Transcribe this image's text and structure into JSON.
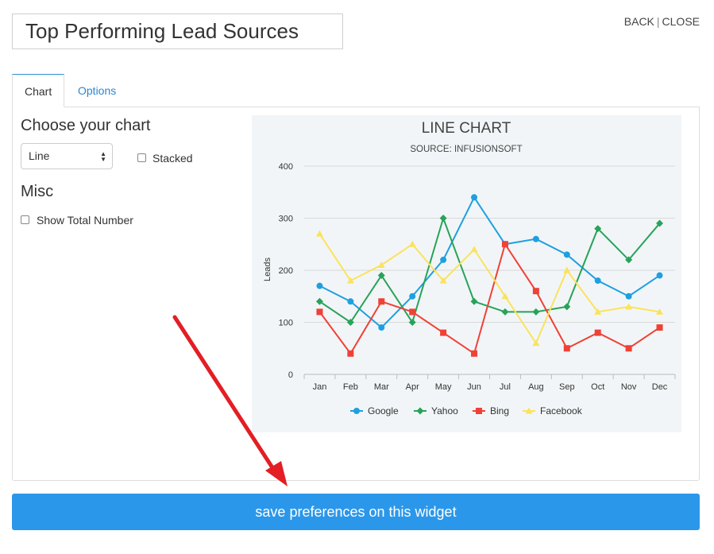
{
  "widget": {
    "title": "Top Performing Lead Sources"
  },
  "top_links": {
    "back": "BACK",
    "separator": "|",
    "close": "CLOSE"
  },
  "tabs": [
    {
      "label": "Chart",
      "active": true
    },
    {
      "label": "Options",
      "active": false
    }
  ],
  "chart_settings": {
    "heading": "Choose your chart",
    "chart_type": "Line",
    "stacked_label": "Stacked",
    "stacked_checked": false
  },
  "misc": {
    "heading": "Misc",
    "show_total_label": "Show Total Number",
    "show_total_checked": false
  },
  "save_button": {
    "label": "save preferences on this widget"
  },
  "colors": {
    "accent": "#2b97ea",
    "google": "#1ea0e0",
    "yahoo": "#27a35a",
    "bing": "#ef4136",
    "facebook": "#fae35c",
    "arrow": "#e31e24"
  },
  "chart_data": {
    "type": "line",
    "title": "LINE CHART",
    "subtitle": "SOURCE: INFUSIONSOFT",
    "xlabel": "",
    "ylabel": "Leads",
    "categories": [
      "Jan",
      "Feb",
      "Mar",
      "Apr",
      "May",
      "Jun",
      "Jul",
      "Aug",
      "Sep",
      "Oct",
      "Nov",
      "Dec"
    ],
    "ylim": [
      0,
      400
    ],
    "yticks": [
      "0",
      "100",
      "200",
      "300",
      "400"
    ],
    "grid": true,
    "legend_position": "bottom",
    "series": [
      {
        "name": "Google",
        "marker": "circle",
        "values": [
          170,
          140,
          90,
          150,
          220,
          340,
          250,
          260,
          230,
          180,
          150,
          190
        ]
      },
      {
        "name": "Yahoo",
        "marker": "diamond",
        "values": [
          140,
          100,
          190,
          100,
          300,
          140,
          120,
          120,
          130,
          280,
          220,
          290
        ]
      },
      {
        "name": "Bing",
        "marker": "square",
        "values": [
          120,
          40,
          140,
          120,
          80,
          40,
          250,
          160,
          50,
          80,
          50,
          90
        ]
      },
      {
        "name": "Facebook",
        "marker": "triangle",
        "values": [
          270,
          180,
          210,
          250,
          180,
          240,
          150,
          60,
          200,
          120,
          130,
          120
        ]
      }
    ]
  }
}
